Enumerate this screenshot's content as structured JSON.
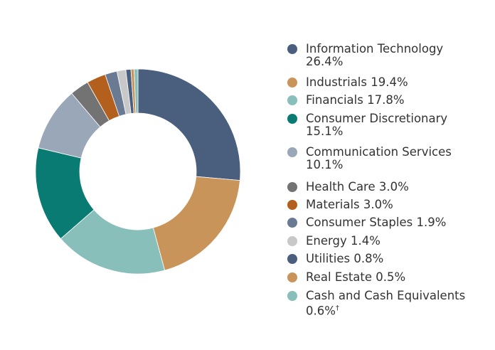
{
  "chart_data": {
    "type": "pie",
    "donut": true,
    "legend_position": "right",
    "slices": [
      {
        "label": "Information Technology",
        "line1": "Information Technology",
        "line2": "26.4%",
        "value": 26.4,
        "color": "#4a5f7e"
      },
      {
        "label": "Industrials",
        "line1": "Industrials 19.4%",
        "line2": "",
        "value": 19.4,
        "color": "#c99459"
      },
      {
        "label": "Financials",
        "line1": "Financials 17.8%",
        "line2": "",
        "value": 17.8,
        "color": "#88bfbb"
      },
      {
        "label": "Consumer Discretionary",
        "line1": "Consumer Discretionary",
        "line2": "15.1%",
        "value": 15.1,
        "color": "#0a7b72"
      },
      {
        "label": "Communication Services",
        "line1": "Communication Services",
        "line2": "10.1%",
        "value": 10.1,
        "color": "#9aa7b8"
      },
      {
        "label": "Health Care",
        "line1": "Health Care 3.0%",
        "line2": "",
        "value": 3.0,
        "color": "#737373"
      },
      {
        "label": "Materials",
        "line1": "Materials 3.0%",
        "line2": "",
        "value": 3.0,
        "color": "#b35f1e"
      },
      {
        "label": "Consumer Staples",
        "line1": "Consumer Staples 1.9%",
        "line2": "",
        "value": 1.9,
        "color": "#6a7a93"
      },
      {
        "label": "Energy",
        "line1": "Energy 1.4%",
        "line2": "",
        "value": 1.4,
        "color": "#c8c8c8"
      },
      {
        "label": "Utilities",
        "line1": "Utilities 0.8%",
        "line2": "",
        "value": 0.8,
        "color": "#4a5f7e"
      },
      {
        "label": "Real Estate",
        "line1": "Real Estate 0.5%",
        "line2": "",
        "value": 0.5,
        "color": "#c99459"
      },
      {
        "label": "Cash and Cash Equivalents",
        "line1": "Cash and Cash Equivalents",
        "line2": "0.6%",
        "sup": "†",
        "value": 0.6,
        "color": "#88bfbb"
      }
    ]
  }
}
